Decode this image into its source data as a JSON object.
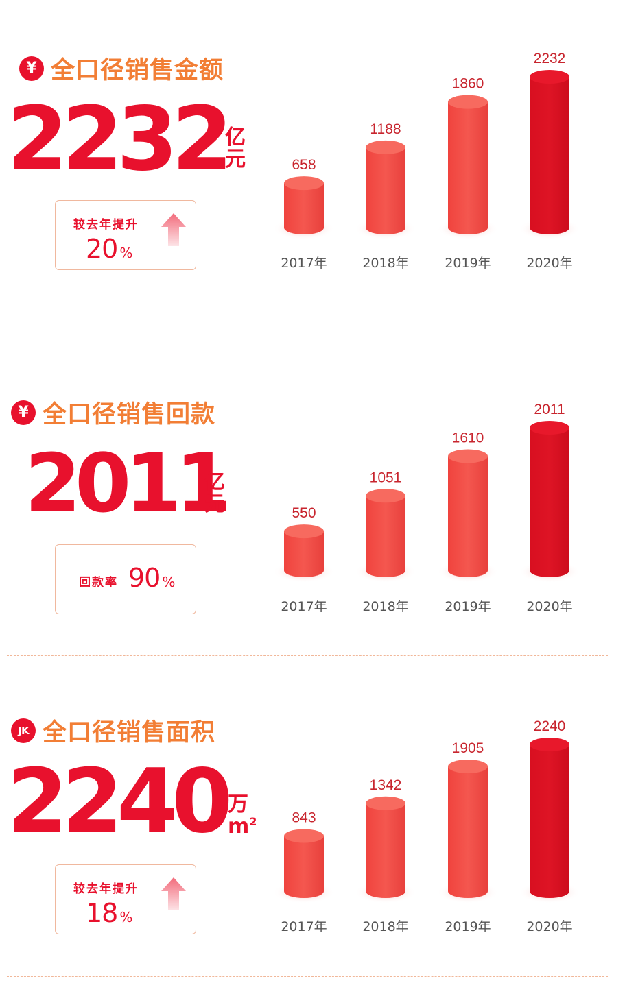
{
  "colors": {
    "accent_red": "#e8112d",
    "title_orange": "#f27e35",
    "bar_light": "#f4574f",
    "bar_dark": "#de1425"
  },
  "sections": [
    {
      "icon": "yen-icon",
      "badge_text": "¥",
      "title": "全口径销售金额",
      "value": "2232",
      "unit_line1": "亿",
      "unit_line2": "元",
      "unit_sup": "",
      "stat_label": "较去年提升",
      "stat_value": "20",
      "stat_unit": "%",
      "stat_icon": "up-arrow-icon"
    },
    {
      "icon": "yen-icon",
      "badge_text": "¥",
      "title": "全口径销售回款",
      "value": "2011",
      "unit_line1": "亿",
      "unit_line2": "元",
      "unit_sup": "",
      "stat_label": "回款率",
      "stat_value": "90",
      "stat_unit": "%",
      "stat_icon": ""
    },
    {
      "icon": "jk-icon",
      "badge_text": "JK",
      "title": "全口径销售面积",
      "value": "2240",
      "unit_line1": "万",
      "unit_line2": "m",
      "unit_sup": "2",
      "stat_label": "较去年提升",
      "stat_value": "18",
      "stat_unit": "%",
      "stat_icon": "up-arrow-icon"
    }
  ],
  "chart_data": [
    {
      "type": "bar",
      "categories": [
        "2017年",
        "2018年",
        "2019年",
        "2020年"
      ],
      "values": [
        658,
        1188,
        1860,
        2232
      ],
      "ylim": [
        0,
        2232
      ],
      "highlight_index": 3,
      "grid": false
    },
    {
      "type": "bar",
      "categories": [
        "2017年",
        "2018年",
        "2019年",
        "2020年"
      ],
      "values": [
        550,
        1051,
        1610,
        2011
      ],
      "ylim": [
        0,
        2011
      ],
      "highlight_index": 3,
      "grid": false
    },
    {
      "type": "bar",
      "categories": [
        "2017年",
        "2018年",
        "2019年",
        "2020年"
      ],
      "values": [
        843,
        1342,
        1905,
        2240
      ],
      "ylim": [
        0,
        2240
      ],
      "highlight_index": 3,
      "grid": false
    }
  ]
}
